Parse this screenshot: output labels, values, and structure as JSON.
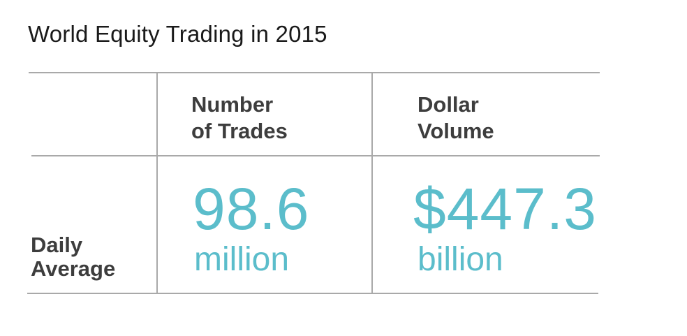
{
  "title": "World Equity Trading in 2015",
  "chart_data": {
    "type": "table",
    "title": "World Equity Trading in 2015",
    "columns": [
      {
        "line1": "Number",
        "line2": "of Trades"
      },
      {
        "line1": "Dollar",
        "line2": "Volume"
      }
    ],
    "rows": [
      {
        "label_line1": "Daily",
        "label_line2": "Average",
        "cells": [
          {
            "value": "98.6",
            "unit": "million"
          },
          {
            "value": "$447.3",
            "unit": "billion"
          }
        ]
      }
    ]
  },
  "colors": {
    "accent": "#5bbdcb",
    "header_text": "#3d3d3d",
    "title_text": "#1a1a1a",
    "rule": "#a9a9a9"
  }
}
